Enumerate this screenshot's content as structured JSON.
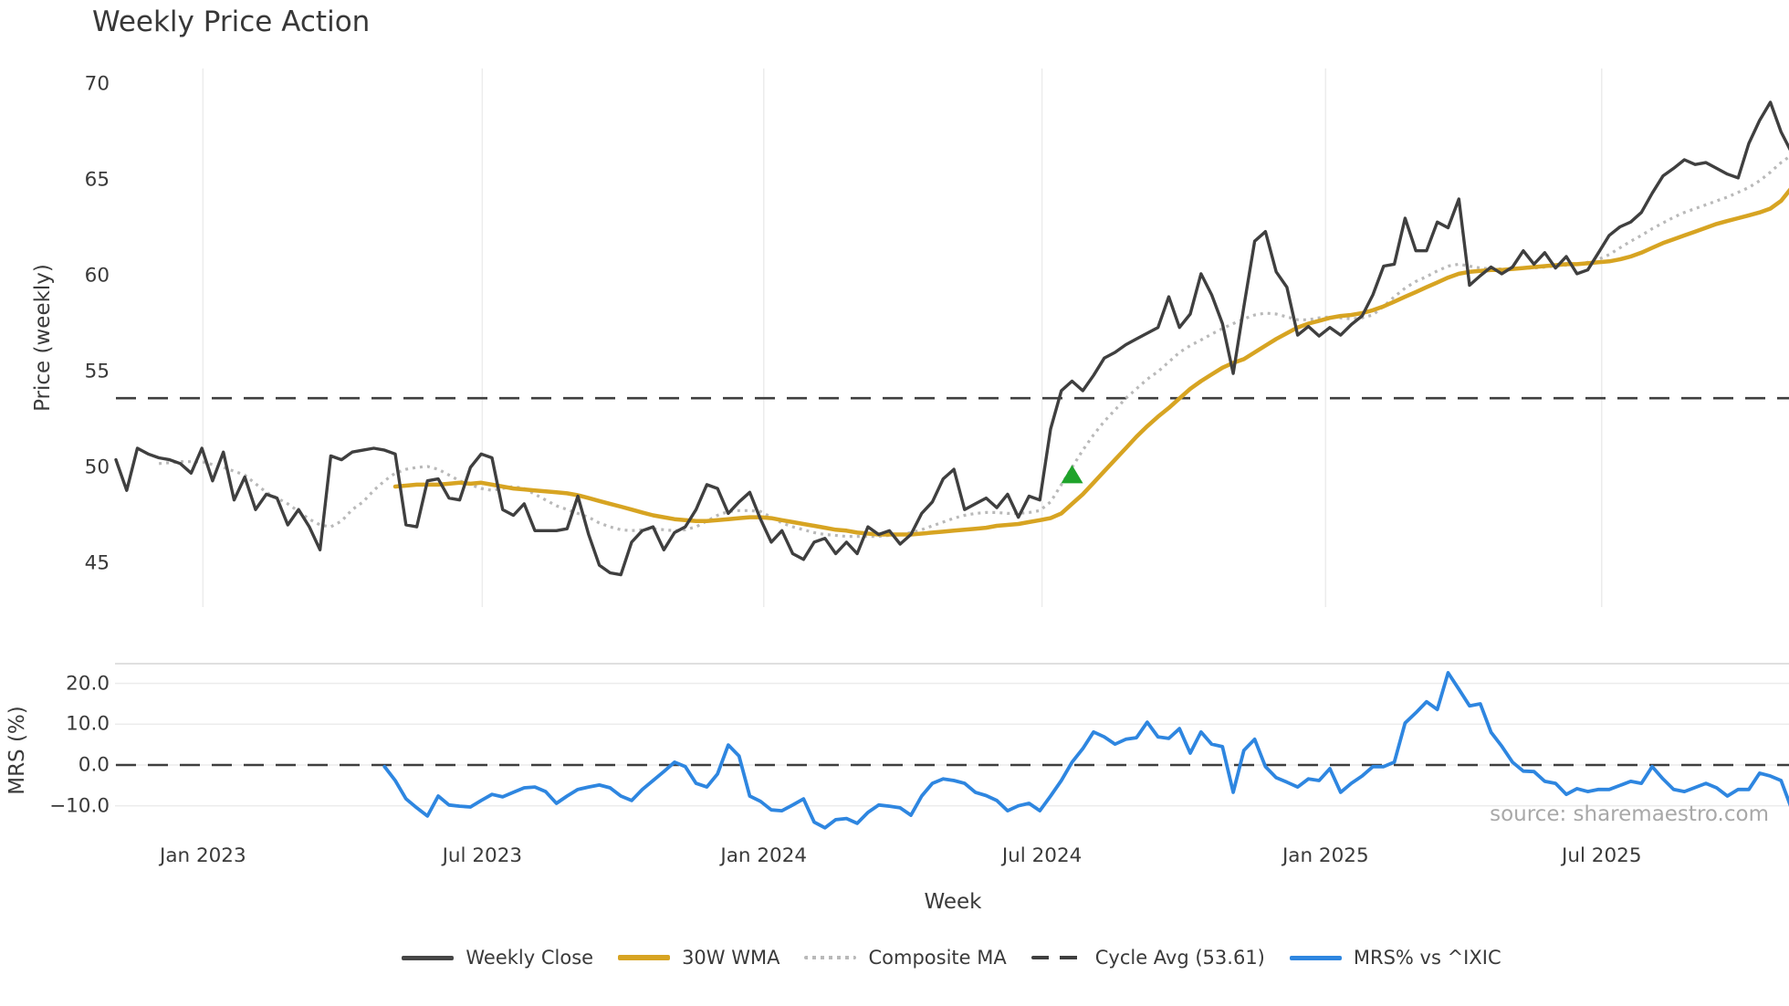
{
  "title": "Weekly Price Action",
  "xlabel": "Week",
  "price_ylabel": "Price (weekly)",
  "mrs_ylabel": "MRS (%)",
  "watermark": "source: sharemaestro.com",
  "colors": {
    "close": "#3f3f3f",
    "wma": "#d7a422",
    "composite": "#b9b9b9",
    "cycle_avg": "#3f3f3f",
    "mrs": "#2e86e0",
    "buy_marker": "#1fa32b",
    "grid": "#ececec",
    "spine": "#d5d5d5",
    "text": "#3a3a3a",
    "watermark": "#a8a8a8"
  },
  "legend": {
    "items": [
      {
        "label": "Weekly Close",
        "style": "solid",
        "color": "#464646",
        "thickness": 5
      },
      {
        "label": "30W WMA",
        "style": "solid",
        "color": "#d7a422",
        "thickness": 6
      },
      {
        "label": "Composite MA",
        "style": "dotted",
        "color": "#b9b9b9",
        "thickness": 4
      },
      {
        "label": "Cycle Avg (53.61)",
        "style": "dashed",
        "color": "#3f3f3f",
        "thickness": 4
      },
      {
        "label": "MRS% vs ^IXIC",
        "style": "solid",
        "color": "#2e86e0",
        "thickness": 5
      }
    ]
  },
  "chart_data": [
    {
      "type": "line",
      "panel": "price",
      "title": "Weekly Price Action",
      "xlabel": "Week",
      "ylabel": "Price (weekly)",
      "ylim": [
        42.7,
        70.8
      ],
      "ytick_labels": [
        "70",
        "65",
        "60",
        "55",
        "50",
        "45"
      ],
      "ytick_values": [
        70,
        65,
        60,
        55,
        50,
        45
      ],
      "grid": "vertical-only",
      "x_axis": {
        "unit": "week-index starting Nov 2022",
        "tick_labels": [
          "Jan 2023",
          "Jul 2023",
          "Jan 2024",
          "Jul 2024",
          "Jan 2025",
          "Jul 2025"
        ],
        "tick_weeks": [
          8.1,
          34.1,
          60.3,
          86.2,
          112.6,
          138.3
        ]
      },
      "cycle_avg": 53.61,
      "buy_marker": {
        "week": 89,
        "price": 49.6,
        "shape": "triangle-up",
        "color": "#1fa32b"
      },
      "series": [
        {
          "name": "Weekly Close",
          "style": "solid",
          "color": "#3f3f3f",
          "start_week": 0,
          "values": [
            50.4,
            48.8,
            51.0,
            50.7,
            50.5,
            50.4,
            50.2,
            49.7,
            51.0,
            49.3,
            50.8,
            48.3,
            49.5,
            47.8,
            48.6,
            48.4,
            47.0,
            47.8,
            46.9,
            45.7,
            50.6,
            50.4,
            50.8,
            50.9,
            51.0,
            50.9,
            50.7,
            47.0,
            46.9,
            49.3,
            49.4,
            48.4,
            48.3,
            50.0,
            50.7,
            50.5,
            47.8,
            47.5,
            48.1,
            46.7,
            46.7,
            46.7,
            46.8,
            48.5,
            46.5,
            44.9,
            44.5,
            44.4,
            46.1,
            46.7,
            46.9,
            45.7,
            46.6,
            46.9,
            47.8,
            49.1,
            48.9,
            47.6,
            48.2,
            48.7,
            47.3,
            46.1,
            46.7,
            45.5,
            45.2,
            46.1,
            46.3,
            45.5,
            46.1,
            45.5,
            46.9,
            46.5,
            46.7,
            46.0,
            46.5,
            47.6,
            48.2,
            49.4,
            49.9,
            47.8,
            48.1,
            48.4,
            47.9,
            48.6,
            47.4,
            48.5,
            48.3,
            52.0,
            54.0,
            54.5,
            54.0,
            54.8,
            55.7,
            56.0,
            56.4,
            56.7,
            57.0,
            57.3,
            58.9,
            57.3,
            58.0,
            60.1,
            59.0,
            57.5,
            54.9,
            58.4,
            61.8,
            62.3,
            60.2,
            59.4,
            56.9,
            57.35,
            56.85,
            57.3,
            56.9,
            57.45,
            57.9,
            59.0,
            60.5,
            60.6,
            63.0,
            61.3,
            61.3,
            62.8,
            62.5,
            64.0,
            59.5,
            60.0,
            60.45,
            60.1,
            60.45,
            61.3,
            60.6,
            61.2,
            60.4,
            61.0,
            60.1,
            60.3,
            61.2,
            62.1,
            62.55,
            62.8,
            63.3,
            64.3,
            65.2,
            65.6,
            66.05,
            65.8,
            65.9,
            65.6,
            65.3,
            65.1,
            66.9,
            68.1,
            69.05,
            67.5,
            66.4
          ]
        },
        {
          "name": "30W WMA",
          "style": "solid",
          "color": "#d7a422",
          "start_week": 26,
          "values": [
            49.0,
            49.05,
            49.1,
            49.1,
            49.1,
            49.15,
            49.2,
            49.15,
            49.2,
            49.1,
            49.0,
            48.9,
            48.85,
            48.8,
            48.75,
            48.7,
            48.65,
            48.55,
            48.4,
            48.25,
            48.1,
            47.95,
            47.8,
            47.65,
            47.5,
            47.4,
            47.3,
            47.25,
            47.2,
            47.2,
            47.25,
            47.3,
            47.35,
            47.4,
            47.4,
            47.35,
            47.25,
            47.15,
            47.05,
            46.95,
            46.85,
            46.75,
            46.7,
            46.6,
            46.55,
            46.5,
            46.5,
            46.5,
            46.5,
            46.55,
            46.6,
            46.65,
            46.7,
            46.75,
            46.8,
            46.85,
            46.95,
            47.0,
            47.05,
            47.15,
            47.25,
            47.35,
            47.6,
            48.1,
            48.6,
            49.2,
            49.8,
            50.4,
            51.0,
            51.6,
            52.15,
            52.65,
            53.1,
            53.6,
            54.1,
            54.5,
            54.85,
            55.2,
            55.45,
            55.65,
            56.0,
            56.35,
            56.7,
            57.0,
            57.3,
            57.5,
            57.65,
            57.8,
            57.9,
            57.95,
            58.05,
            58.2,
            58.4,
            58.65,
            58.9,
            59.15,
            59.4,
            59.65,
            59.9,
            60.1,
            60.2,
            60.25,
            60.3,
            60.3,
            60.35,
            60.4,
            60.45,
            60.5,
            60.55,
            60.6,
            60.6,
            60.65,
            60.7,
            60.75,
            60.85,
            61.0,
            61.2,
            61.45,
            61.7,
            61.9,
            62.1,
            62.3,
            62.5,
            62.7,
            62.85,
            63.0,
            63.15,
            63.3,
            63.5,
            63.9,
            64.6
          ]
        },
        {
          "name": "Composite MA",
          "style": "dotted",
          "color": "#b9b9b9",
          "start_week": 4,
          "values": [
            50.2,
            50.25,
            50.3,
            50.3,
            50.3,
            50.15,
            50.0,
            49.8,
            49.6,
            49.15,
            48.7,
            48.4,
            48.1,
            47.7,
            47.3,
            47.0,
            46.9,
            47.2,
            47.8,
            48.2,
            48.8,
            49.3,
            49.7,
            49.9,
            50.0,
            50.05,
            49.9,
            49.6,
            49.3,
            49.1,
            48.9,
            48.8,
            48.9,
            49.0,
            48.9,
            48.6,
            48.3,
            48.0,
            47.8,
            47.6,
            47.4,
            47.1,
            46.9,
            46.75,
            46.7,
            46.75,
            46.8,
            46.75,
            46.7,
            46.75,
            46.9,
            47.2,
            47.5,
            47.7,
            47.75,
            47.75,
            47.7,
            47.4,
            47.1,
            46.9,
            46.75,
            46.6,
            46.5,
            46.45,
            46.4,
            46.4,
            46.4,
            46.4,
            46.45,
            46.5,
            46.6,
            46.75,
            46.95,
            47.15,
            47.35,
            47.5,
            47.6,
            47.65,
            47.65,
            47.6,
            47.6,
            47.65,
            47.75,
            48.2,
            49.1,
            50.0,
            50.9,
            51.7,
            52.4,
            53.0,
            53.6,
            54.1,
            54.6,
            55.0,
            55.5,
            56.0,
            56.35,
            56.65,
            56.95,
            57.25,
            57.5,
            57.75,
            57.95,
            58.05,
            58.0,
            57.85,
            57.7,
            57.7,
            57.8,
            57.85,
            57.8,
            57.75,
            57.8,
            57.95,
            58.4,
            58.9,
            59.35,
            59.7,
            59.95,
            60.25,
            60.5,
            60.6,
            60.5,
            60.4,
            60.35,
            60.35,
            60.35,
            60.4,
            60.4,
            60.45,
            60.5,
            60.55,
            60.6,
            60.7,
            60.85,
            61.1,
            61.45,
            61.8,
            62.1,
            62.45,
            62.75,
            63.05,
            63.3,
            63.5,
            63.7,
            63.9,
            64.1,
            64.35,
            64.6,
            64.95,
            65.4,
            65.9,
            66.3
          ]
        },
        {
          "name": "Cycle Avg (53.61)",
          "style": "dashed",
          "color": "#3f3f3f",
          "value": 53.61
        }
      ]
    },
    {
      "type": "line",
      "panel": "mrs",
      "ylabel": "MRS (%)",
      "ylim": [
        -17.9,
        24.8
      ],
      "ytick_labels": [
        "20.0",
        "10.0",
        "0.0",
        "−10.0"
      ],
      "ytick_values": [
        20.0,
        10.0,
        0.0,
        -10.0
      ],
      "zero_line": 0.0,
      "grid": "horizontal-only",
      "series": [
        {
          "name": "MRS% vs ^IXIC",
          "style": "solid",
          "color": "#2e86e0",
          "start_week": 25,
          "values": [
            -0.4,
            -3.8,
            -8.3,
            -10.5,
            -12.5,
            -7.6,
            -9.8,
            -10.1,
            -10.3,
            -8.7,
            -7.2,
            -7.8,
            -6.7,
            -5.6,
            -5.4,
            -6.5,
            -9.4,
            -7.6,
            -6.0,
            -5.4,
            -4.9,
            -5.6,
            -7.6,
            -8.7,
            -6.0,
            -3.8,
            -1.6,
            0.7,
            -0.4,
            -4.5,
            -5.4,
            -2.2,
            4.9,
            2.2,
            -7.6,
            -8.9,
            -11.0,
            -11.2,
            -9.8,
            -8.3,
            -14.0,
            -15.4,
            -13.4,
            -13.1,
            -14.3,
            -11.6,
            -9.8,
            -10.1,
            -10.5,
            -12.3,
            -7.6,
            -4.5,
            -3.4,
            -3.8,
            -4.5,
            -6.7,
            -7.5,
            -8.7,
            -11.2,
            -10.0,
            -9.4,
            -11.2,
            -7.6,
            -3.8,
            0.7,
            4.0,
            8.1,
            6.9,
            5.1,
            6.3,
            6.7,
            10.5,
            6.9,
            6.5,
            8.9,
            2.9,
            8.1,
            5.1,
            4.5,
            -6.7,
            3.6,
            6.3,
            -0.4,
            -3.1,
            -4.2,
            -5.4,
            -3.4,
            -3.8,
            -0.9,
            -6.7,
            -4.5,
            -2.7,
            -0.4,
            -0.4,
            0.7,
            10.3,
            12.8,
            15.5,
            13.6,
            22.6,
            18.6,
            14.5,
            15.0,
            8.0,
            4.6,
            0.7,
            -1.5,
            -1.6,
            -4.0,
            -4.5,
            -7.2,
            -5.8,
            -6.5,
            -6.0,
            -6.0,
            -5.0,
            -4.0,
            -4.5,
            -0.4,
            -3.4,
            -6.0,
            -6.5,
            -5.5,
            -4.5,
            -5.6,
            -7.6,
            -6.0,
            -6.0,
            -2.0,
            -2.7,
            -3.8,
            -10.9
          ]
        }
      ]
    }
  ]
}
